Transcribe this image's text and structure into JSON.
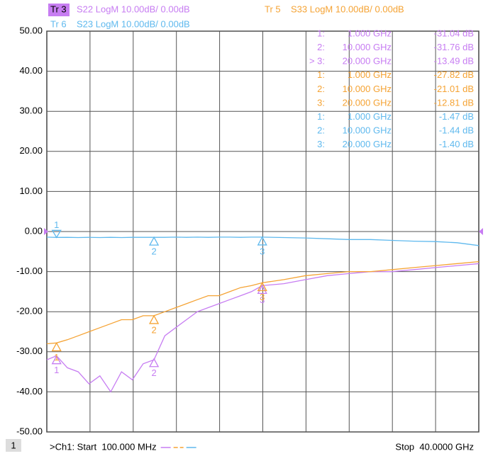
{
  "chart_data": {
    "type": "line",
    "traces": [
      {
        "tr": "Tr 3",
        "label": "S22 LogM 10.00dB/  0.00dB"
      },
      {
        "tr": "Tr 5",
        "label": "S33 LogM 10.00dB/  0.00dB"
      },
      {
        "tr": "Tr 6",
        "label": "S23 LogM 10.00dB/  0.00dB"
      }
    ],
    "x": [
      0.1,
      1,
      2,
      3,
      4,
      5,
      6,
      7,
      8,
      9,
      10,
      11,
      12,
      13,
      14,
      15,
      16,
      17,
      18,
      19,
      20,
      22,
      24,
      26,
      28,
      30,
      32,
      34,
      36,
      38,
      40
    ],
    "series": [
      {
        "name": "S22",
        "color": "#c77df2",
        "values": [
          -32,
          -31,
          -34,
          -35,
          -38,
          -36,
          -40,
          -35,
          -37,
          -33,
          -32,
          -26,
          -24,
          -22,
          -20,
          -19,
          -18,
          -17,
          -16,
          -15,
          -13.5,
          -13,
          -12,
          -11,
          -10.5,
          -10,
          -10,
          -9.5,
          -9,
          -8.5,
          -8
        ],
        "markers": [
          {
            "id": "1:",
            "num": "1",
            "x": 1,
            "y": -31.04,
            "stimulus": "1.000 GHz",
            "response": "-31.04 dB"
          },
          {
            "id": "2:",
            "num": "2",
            "x": 10,
            "y": -31.76,
            "stimulus": "10.000 GHz",
            "response": "-31.76 dB"
          },
          {
            "id": "> 3:",
            "num": "3",
            "x": 20,
            "y": -13.49,
            "stimulus": "20.000 GHz",
            "response": "-13.49 dB"
          }
        ]
      },
      {
        "name": "S33",
        "color": "#f5a334",
        "values": [
          -28,
          -27.8,
          -27,
          -26,
          -25,
          -24,
          -23,
          -22,
          -22,
          -21,
          -21,
          -20,
          -19,
          -18,
          -17,
          -16,
          -16,
          -15,
          -14,
          -13.5,
          -12.8,
          -12,
          -11,
          -10.5,
          -10,
          -10,
          -9.5,
          -9,
          -8.5,
          -8,
          -7.5
        ],
        "markers": [
          {
            "id": "1:",
            "num": "1",
            "x": 1,
            "y": -27.82,
            "stimulus": "1.000 GHz",
            "response": "-27.82 dB"
          },
          {
            "id": "2:",
            "num": "2",
            "x": 10,
            "y": -21.01,
            "stimulus": "10.000 GHz",
            "response": "-21.01 dB"
          },
          {
            "id": "3:",
            "num": "3",
            "x": 20,
            "y": -12.81,
            "stimulus": "20.000 GHz",
            "response": "-12.81 dB"
          }
        ]
      },
      {
        "name": "S23",
        "color": "#5fb9ee",
        "values": [
          -1.4,
          -1.47,
          -1.45,
          -1.5,
          -1.45,
          -1.5,
          -1.45,
          -1.5,
          -1.45,
          -1.45,
          -1.44,
          -1.45,
          -1.4,
          -1.45,
          -1.4,
          -1.45,
          -1.4,
          -1.4,
          -1.45,
          -1.4,
          -1.4,
          -1.5,
          -1.6,
          -1.8,
          -2,
          -2,
          -2.2,
          -2.4,
          -2.5,
          -2.8,
          -3.5
        ],
        "markers": [
          {
            "id": "1:",
            "num": "1",
            "x": 1,
            "y": -1.47,
            "stimulus": "1.000 GHz",
            "response": "-1.47 dB"
          },
          {
            "id": "2:",
            "num": "2",
            "x": 10,
            "y": -1.44,
            "stimulus": "10.000 GHz",
            "response": "-1.44 dB"
          },
          {
            "id": "3:",
            "num": "3",
            "x": 20,
            "y": -1.4,
            "stimulus": "20.000 GHz",
            "response": "-1.40 dB"
          }
        ]
      }
    ],
    "xlim": [
      0.1,
      40
    ],
    "ylim": [
      -50,
      50
    ],
    "yticks": [
      {
        "value": 50,
        "label": "50.00"
      },
      {
        "value": 40,
        "label": "40.00"
      },
      {
        "value": 30,
        "label": "30.00"
      },
      {
        "value": 20,
        "label": "20.00"
      },
      {
        "value": 10,
        "label": "10.00"
      },
      {
        "value": 0,
        "label": "0.00"
      },
      {
        "value": -10,
        "label": "-10.00"
      },
      {
        "value": -20,
        "label": "-20.00"
      },
      {
        "value": -30,
        "label": "-30.00"
      },
      {
        "value": -40,
        "label": "-40.00"
      },
      {
        "value": -50,
        "label": "-50.00"
      }
    ],
    "grid": true,
    "footer": {
      "channel": "1",
      "start": ">Ch1: Start  100.000 MHz",
      "stop": "Stop  40.0000 GHz"
    }
  }
}
